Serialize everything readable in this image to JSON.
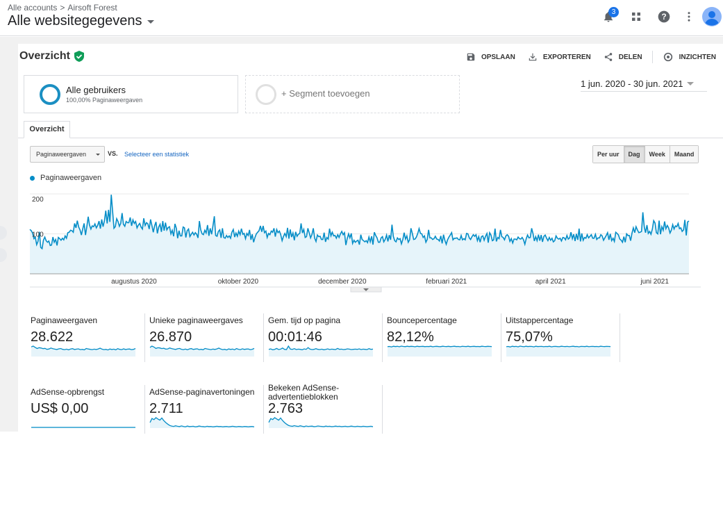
{
  "header": {
    "breadcrumb": [
      "Alle accounts",
      "Airsoft Forest"
    ],
    "breadcrumb_sep": ">",
    "view_title": "Alle websitegegevens",
    "notification_count": "3",
    "icons": [
      "bell-icon",
      "apps-grid-icon",
      "help-icon",
      "more-vert-icon",
      "avatar-icon"
    ]
  },
  "report": {
    "title": "Overzicht",
    "actions": [
      {
        "label": "OPSLAAN",
        "icon": "save-icon"
      },
      {
        "label": "EXPORTEREN",
        "icon": "download-icon"
      },
      {
        "label": "DELEN",
        "icon": "share-icon"
      },
      {
        "label": "INZICHTEN",
        "icon": "insights-icon"
      }
    ]
  },
  "segments": {
    "active": {
      "name": "Alle gebruikers",
      "sub": "100,00% Paginaweergaven"
    },
    "add_label": "+ Segment toevoegen"
  },
  "date_range": "1 jun. 2020 - 30 jun. 2021",
  "tabs": [
    "Overzicht"
  ],
  "chart_controls": {
    "metric": "Paginaweergaven",
    "vs": "VS.",
    "select_stat": "Selecteer een statistiek",
    "granularity": [
      "Per uur",
      "Dag",
      "Week",
      "Maand"
    ],
    "active_granularity": "Dag"
  },
  "colors": {
    "series": "#058dc7",
    "fill": "#e6f4fa",
    "link": "#1565c0"
  },
  "chart_data": {
    "type": "area",
    "series": [
      {
        "name": "Paginaweergaven"
      }
    ],
    "y_ticks": [
      "200",
      "100"
    ],
    "ylim": [
      0,
      200
    ],
    "x_tick_labels": [
      "augustus 2020",
      "oktober 2020",
      "december 2020",
      "februari 2021",
      "april 2021",
      "juni 2021"
    ],
    "x_label_positions": [
      0.158,
      0.316,
      0.474,
      0.632,
      0.79,
      0.948
    ],
    "start_date": "1 jun. 2020",
    "end_date": "30 jun. 2021",
    "values": [
      111,
      108,
      102,
      88,
      92,
      73,
      81,
      105,
      66,
      63,
      84,
      92,
      83,
      79,
      82,
      71,
      72,
      92,
      79,
      86,
      71,
      91,
      88,
      84,
      89,
      85,
      95,
      89,
      103,
      104,
      109,
      108,
      104,
      126,
      115,
      133,
      117,
      110,
      97,
      113,
      126,
      97,
      118,
      143,
      122,
      112,
      120,
      118,
      125,
      115,
      121,
      132,
      113,
      136,
      118,
      133,
      158,
      126,
      160,
      130,
      198,
      157,
      114,
      118,
      138,
      131,
      119,
      126,
      152,
      124,
      119,
      131,
      128,
      128,
      141,
      120,
      135,
      126,
      131,
      115,
      122,
      126,
      117,
      112,
      139,
      121,
      128,
      125,
      112,
      136,
      121,
      104,
      120,
      130,
      101,
      117,
      124,
      105,
      132,
      108,
      128,
      110,
      116,
      118,
      100,
      109,
      94,
      125,
      114,
      89,
      108,
      95,
      95,
      117,
      115,
      91,
      108,
      112,
      93,
      99,
      104,
      97,
      103,
      99,
      90,
      132,
      110,
      100,
      98,
      109,
      102,
      122,
      95,
      114,
      99,
      120,
      144,
      96,
      94,
      106,
      110,
      90,
      114,
      91,
      89,
      96,
      91,
      95,
      89,
      104,
      111,
      92,
      102,
      94,
      107,
      98,
      113,
      99,
      101,
      88,
      101,
      96,
      110,
      85,
      99,
      79,
      91,
      100,
      104,
      108,
      120,
      105,
      120,
      103,
      107,
      91,
      101,
      98,
      107,
      104,
      114,
      93,
      111,
      103,
      107,
      98,
      83,
      94,
      101,
      93,
      115,
      88,
      111,
      92,
      102,
      84,
      105,
      94,
      99,
      101,
      126,
      102,
      111,
      91,
      93,
      114,
      102,
      90,
      99,
      114,
      89,
      81,
      97,
      93,
      94,
      86,
      86,
      103,
      80,
      91,
      87,
      113,
      95,
      104,
      95,
      96,
      89,
      98,
      91,
      100,
      106,
      98,
      103,
      72,
      88,
      100,
      90,
      101,
      76,
      84,
      79,
      82,
      84,
      73,
      98,
      86,
      83,
      80,
      83,
      78,
      92,
      80,
      94,
      73,
      104,
      96,
      90,
      79,
      79,
      90,
      93,
      80,
      86,
      97,
      81,
      97,
      85,
      123,
      94,
      83,
      80,
      90,
      86,
      88,
      75,
      86,
      103,
      87,
      95,
      79,
      85,
      114,
      101,
      86,
      87,
      92,
      101,
      113,
      101,
      100,
      91,
      95,
      79,
      86,
      110,
      90,
      90,
      86,
      88,
      94,
      87,
      86,
      82,
      95,
      76,
      98,
      84,
      74,
      85,
      92,
      97,
      103,
      85,
      89,
      89,
      90,
      86,
      85,
      96,
      85,
      88,
      85,
      101,
      100,
      90,
      86,
      93,
      98,
      94,
      98,
      83,
      93,
      79,
      93,
      95,
      84,
      94,
      101,
      78,
      103,
      97,
      83,
      85,
      113,
      81,
      91,
      88,
      110,
      93,
      91,
      85,
      95,
      98,
      94,
      81,
      88,
      77,
      87,
      87,
      85,
      92,
      88,
      87,
      91,
      85,
      74,
      88,
      97,
      90,
      91,
      114,
      101,
      82,
      93,
      83,
      98,
      83,
      97,
      80,
      94,
      97,
      89,
      83,
      91,
      84,
      89,
      80,
      83,
      95,
      89,
      87,
      89,
      82,
      91,
      90,
      85,
      96,
      87,
      90,
      104,
      88,
      99,
      82,
      100,
      85,
      113,
      81,
      101,
      84,
      91,
      89,
      98,
      90,
      94,
      98,
      89,
      89,
      99,
      86,
      90,
      90,
      98,
      95,
      84,
      90,
      96,
      103,
      85,
      100,
      83,
      89,
      81,
      104,
      101,
      97,
      87,
      84,
      79,
      93,
      79,
      100,
      96,
      96,
      83,
      102,
      115,
      103,
      118,
      110,
      103,
      104,
      106,
      154,
      118,
      103,
      122,
      101,
      106,
      99,
      112,
      133,
      127,
      103,
      100,
      133,
      99,
      118,
      109,
      131,
      113,
      121,
      115,
      102,
      109,
      123,
      112,
      120,
      118,
      126,
      113,
      115,
      106,
      110,
      135,
      96,
      130,
      132
    ]
  },
  "metrics": [
    {
      "label": "Paginaweergaven",
      "value": "28.622",
      "spark": [
        55,
        60,
        52,
        45,
        50,
        48,
        44,
        46,
        40,
        42,
        48,
        44,
        41,
        39,
        43,
        45,
        40,
        38,
        41,
        37,
        42,
        44,
        39,
        41,
        43,
        38,
        40,
        37,
        45,
        42,
        40,
        38,
        41,
        39,
        42,
        47,
        41,
        38,
        40,
        36,
        42,
        39,
        41,
        37,
        44,
        40,
        38,
        43,
        39,
        41,
        42,
        38,
        40,
        45
      ]
    },
    {
      "label": "Unieke paginaweergaves",
      "value": "26.870",
      "spark": [
        50,
        58,
        52,
        44,
        48,
        47,
        43,
        45,
        40,
        41,
        47,
        43,
        40,
        38,
        42,
        44,
        39,
        37,
        40,
        36,
        41,
        43,
        38,
        40,
        42,
        37,
        39,
        36,
        44,
        41,
        39,
        37,
        40,
        38,
        41,
        46,
        40,
        37,
        39,
        35,
        41,
        38,
        40,
        36,
        43,
        39,
        37,
        42,
        38,
        40,
        41,
        37,
        39,
        44
      ]
    },
    {
      "label": "Gem. tijd op pagina",
      "value": "00:01:46",
      "spark": [
        30,
        32,
        28,
        30,
        34,
        29,
        31,
        36,
        30,
        29,
        45,
        31,
        30,
        33,
        29,
        31,
        30,
        28,
        32,
        30,
        38,
        31,
        29,
        30,
        33,
        30,
        29,
        31,
        28,
        30,
        32,
        29,
        31,
        30,
        29,
        34,
        30,
        31,
        29,
        30,
        32,
        31,
        29,
        30,
        31,
        30,
        32,
        29,
        31,
        30,
        29,
        33,
        30,
        31
      ]
    },
    {
      "label": "Bouncepercentage",
      "value": "82,12%",
      "spark": [
        78,
        80,
        76,
        82,
        79,
        81,
        77,
        83,
        80,
        78,
        82,
        79,
        81,
        80,
        77,
        82,
        79,
        80,
        81,
        78,
        80,
        79,
        82,
        77,
        80,
        81,
        79,
        78,
        82,
        80,
        79,
        81,
        78,
        80,
        82,
        79,
        80,
        77,
        81,
        80,
        79,
        82,
        78,
        80,
        81,
        79,
        80,
        78,
        82,
        80,
        79,
        81,
        80,
        79
      ]
    },
    {
      "label": "Uitstappercentage",
      "value": "75,07%",
      "spark": [
        72,
        74,
        70,
        76,
        73,
        75,
        71,
        77,
        74,
        72,
        76,
        73,
        75,
        74,
        71,
        76,
        73,
        74,
        75,
        72,
        74,
        73,
        76,
        71,
        74,
        75,
        73,
        72,
        76,
        74,
        73,
        75,
        72,
        74,
        76,
        73,
        74,
        71,
        75,
        74,
        73,
        76,
        72,
        74,
        75,
        73,
        74,
        72,
        76,
        74,
        73,
        75,
        74,
        73
      ]
    },
    {
      "label": "AdSense-opbrengst",
      "value": "US$ 0,00",
      "spark": [
        0,
        0,
        0,
        0,
        0,
        0,
        0,
        0,
        0,
        0,
        0,
        0,
        0,
        0,
        0,
        0,
        0,
        0,
        0,
        0,
        0,
        0,
        0,
        0,
        0,
        0,
        0,
        0,
        0,
        0,
        0,
        0,
        0,
        0,
        0,
        0,
        0,
        0,
        0,
        0,
        0,
        0,
        0,
        0,
        0,
        0,
        0,
        0,
        0,
        0,
        0,
        0,
        0,
        0
      ]
    },
    {
      "label": "AdSense-paginavertoningen",
      "value": "2.711",
      "spark": [
        30,
        55,
        48,
        60,
        52,
        45,
        58,
        42,
        30,
        20,
        12,
        8,
        6,
        10,
        7,
        5,
        9,
        6,
        4,
        8,
        5,
        6,
        7,
        4,
        5,
        8,
        6,
        5,
        4,
        7,
        5,
        6,
        4,
        5,
        7,
        5,
        6,
        4,
        5,
        6,
        4,
        5,
        7,
        5,
        4,
        6,
        5,
        4,
        6,
        5,
        4,
        5,
        6,
        4
      ]
    },
    {
      "label": "Bekeken AdSense-advertentieblokken",
      "value": "2.763",
      "spark": [
        32,
        56,
        50,
        62,
        54,
        46,
        60,
        44,
        31,
        21,
        13,
        9,
        7,
        11,
        8,
        6,
        10,
        7,
        5,
        9,
        6,
        7,
        8,
        5,
        6,
        9,
        7,
        6,
        5,
        8,
        6,
        7,
        5,
        6,
        8,
        6,
        7,
        5,
        6,
        7,
        5,
        6,
        8,
        6,
        5,
        7,
        6,
        5,
        7,
        6,
        5,
        6,
        7,
        5
      ]
    }
  ]
}
